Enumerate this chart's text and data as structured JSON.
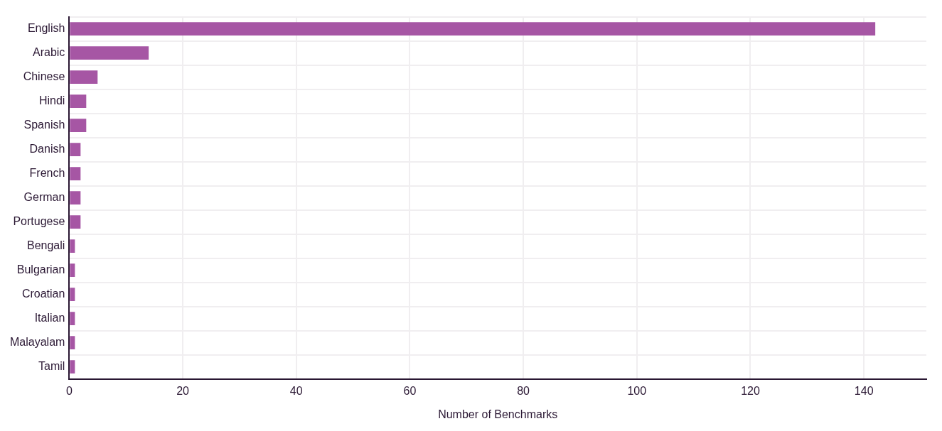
{
  "chart_data": {
    "type": "bar",
    "orientation": "horizontal",
    "xlabel": "Number of Benchmarks",
    "categories": [
      "English",
      "Arabic",
      "Chinese",
      "Hindi",
      "Spanish",
      "Danish",
      "French",
      "German",
      "Portugese",
      "Bengali",
      "Bulgarian",
      "Croatian",
      "Italian",
      "Malayalam",
      "Tamil"
    ],
    "values": [
      142,
      14,
      5,
      3,
      3,
      2,
      2,
      2,
      2,
      1,
      1,
      1,
      1,
      1,
      1
    ],
    "color": "#a656a4",
    "xlim": [
      0,
      151
    ],
    "xticks": [
      0,
      20,
      40,
      60,
      80,
      100,
      120,
      140
    ],
    "grid": true,
    "legend": false
  }
}
